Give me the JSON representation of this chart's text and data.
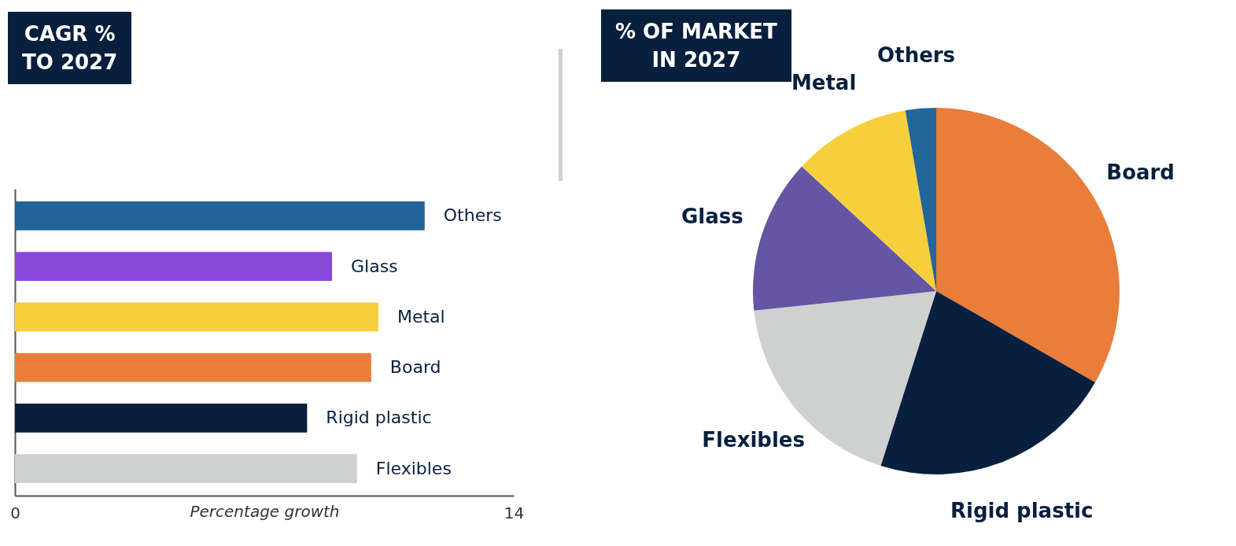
{
  "chart_data": [
    {
      "type": "bar",
      "orientation": "horizontal",
      "title": "CAGR %\nTO 2027",
      "xlabel": "Percentage growth",
      "categories": [
        "Others",
        "Glass",
        "Metal",
        "Board",
        "Rigid plastic",
        "Flexibles"
      ],
      "values": [
        11.5,
        8.9,
        10.2,
        10.0,
        8.2,
        9.6
      ],
      "colors": [
        "#22639a",
        "#8a48db",
        "#f5d03c",
        "#e87e3a",
        "#08203d",
        "#cfd0d0"
      ],
      "xlim": [
        0,
        14
      ],
      "xticks": [
        0,
        14
      ]
    },
    {
      "type": "pie",
      "title": "% OF MARKET\nIN 2027",
      "categories": [
        "Board",
        "Rigid plastic",
        "Flexibles",
        "Glass",
        "Metal",
        "Others"
      ],
      "values": [
        33.3,
        21.6,
        18.4,
        13.6,
        10.4,
        2.7
      ],
      "colors": [
        "#e87e3a",
        "#08203d",
        "#cfd0d0",
        "#6556a4",
        "#f6d03c",
        "#22669a"
      ]
    }
  ]
}
